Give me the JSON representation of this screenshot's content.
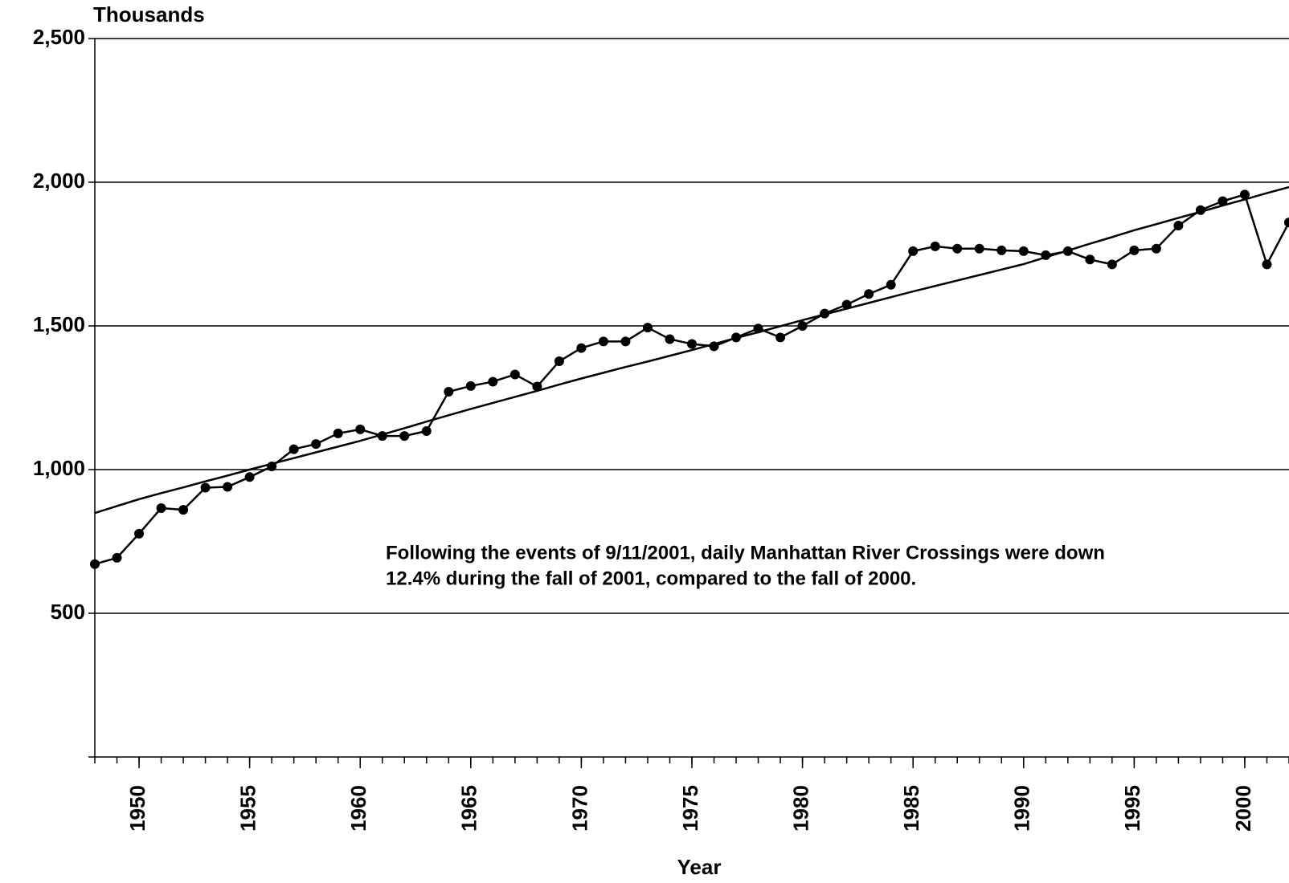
{
  "chart_data": {
    "type": "line",
    "y_label": "Thousands",
    "x_label": "Year",
    "annotation": [
      "Following the events of 9/11/2001, daily Manhattan River Crossings were down",
      "12.4% during the fall of 2001, compared to the fall of 2000."
    ],
    "x": [
      1948,
      1949,
      1950,
      1951,
      1952,
      1953,
      1954,
      1955,
      1956,
      1957,
      1958,
      1959,
      1960,
      1961,
      1962,
      1963,
      1964,
      1965,
      1966,
      1967,
      1968,
      1969,
      1970,
      1971,
      1972,
      1973,
      1974,
      1975,
      1976,
      1977,
      1978,
      1979,
      1980,
      1981,
      1982,
      1983,
      1984,
      1985,
      1986,
      1987,
      1988,
      1989,
      1990,
      1991,
      1992,
      1993,
      1994,
      1995,
      1996,
      1997,
      1998,
      1999,
      2000,
      2001,
      2002
    ],
    "series": [
      {
        "color": "#000000",
        "markers": true,
        "values": [
          671,
          693,
          777,
          866,
          860,
          937,
          940,
          974,
          1011,
          1071,
          1089,
          1126,
          1140,
          1117,
          1117,
          1134,
          1271,
          1291,
          1306,
          1331,
          1289,
          1377,
          1423,
          1446,
          1446,
          1494,
          1454,
          1437,
          1429,
          1460,
          1491,
          1460,
          1500,
          1543,
          1574,
          1611,
          1643,
          1760,
          1777,
          1769,
          1769,
          1763,
          1760,
          1746,
          1760,
          1731,
          1714,
          1763,
          1769,
          1849,
          1903,
          1934,
          1957,
          1714,
          1860
        ]
      },
      {
        "color": "#000000",
        "markers": false,
        "values": [
          849,
          873,
          897,
          918,
          938,
          959,
          979,
          1000,
          1020,
          1040,
          1060,
          1080,
          1100,
          1122,
          1144,
          1167,
          1189,
          1211,
          1232,
          1253,
          1274,
          1296,
          1317,
          1337,
          1357,
          1376,
          1396,
          1416,
          1437,
          1458,
          1478,
          1499,
          1520,
          1540,
          1560,
          1580,
          1600,
          1620,
          1639,
          1658,
          1677,
          1696,
          1715,
          1739,
          1762,
          1786,
          1809,
          1833,
          1854,
          1876,
          1897,
          1919,
          1940,
          1962,
          1983
        ]
      }
    ],
    "xlim": [
      1948,
      2002
    ],
    "xticks": [
      1950,
      1955,
      1960,
      1965,
      1970,
      1975,
      1980,
      1985,
      1990,
      1995,
      2000
    ],
    "ylim": [
      0,
      2500
    ],
    "yticks": [
      500,
      {
        "value": 1000,
        "label": "1,000"
      },
      {
        "value": 1500,
        "label": "1,500"
      },
      {
        "value": 2000,
        "label": "2,000"
      },
      {
        "value": 2500,
        "label": "2,500"
      }
    ],
    "grid": true
  }
}
